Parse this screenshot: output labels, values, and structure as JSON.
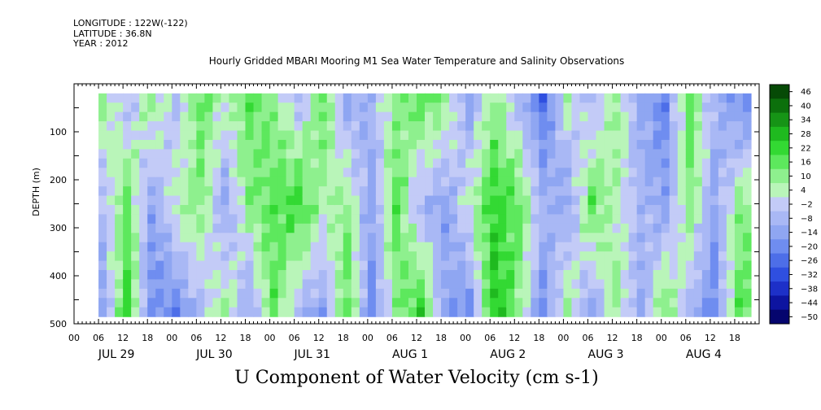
{
  "header": {
    "longitude": "LONGITUDE : 122W(-122)",
    "latitude": "LATITUDE : 36.8N",
    "year": "YEAR : 2012",
    "title": "Hourly Gridded MBARI Mooring M1 Sea Water Temperature and Salinity Observations"
  },
  "chart_data": {
    "type": "heatmap",
    "title": "Hourly Gridded MBARI Mooring M1 Sea Water Temperature and Salinity Observations",
    "xlabel": "U Component of Water Velocity (cm s-1)",
    "ylabel": "DEPTH (m)",
    "y_axis": {
      "range": [
        500,
        0
      ],
      "reversed": true,
      "tick_values": [
        100,
        200,
        300,
        400,
        500
      ],
      "data_range": [
        20,
        485
      ]
    },
    "x_axis": {
      "hour_ticks": [
        "00",
        "06",
        "12",
        "18",
        "00",
        "06",
        "12",
        "18",
        "00",
        "06",
        "12",
        "18",
        "00",
        "06",
        "12",
        "18",
        "00",
        "06",
        "12",
        "18",
        "00",
        "06",
        "12",
        "18",
        "00",
        "06",
        "12",
        "18"
      ],
      "day_labels": [
        "JUL 29",
        "JUL 30",
        "JUL 31",
        "AUG  1",
        "AUG  2",
        "AUG  3",
        "AUG  4"
      ],
      "start": "2012-07-29 00:00",
      "end": "2012-08-04 23:00"
    },
    "colorbar": {
      "levels": [
        -50,
        -44,
        -38,
        -32,
        -26,
        -20,
        -14,
        -8,
        -2,
        4,
        10,
        16,
        22,
        28,
        34,
        40,
        46
      ],
      "colors": [
        "#05056e",
        "#0d14a0",
        "#1d30c8",
        "#2f4fe0",
        "#4d6ee8",
        "#6f8df0",
        "#8fa6f2",
        "#a9b8f5",
        "#c3cbf7",
        "#b9f5b9",
        "#8ef08e",
        "#5de85d",
        "#33d933",
        "#1fba1f",
        "#169416",
        "#0c700c",
        "#064a06"
      ]
    },
    "field_columns": [
      {
        "time": "2012-07-29 06:00",
        "u_surface": 10,
        "u_mid": -8,
        "u_deep": -14
      },
      {
        "time": "2012-07-29 12:00",
        "u_surface": -8,
        "u_mid": 16,
        "u_deep": 22
      },
      {
        "time": "2012-07-29 18:00",
        "u_surface": 10,
        "u_mid": -14,
        "u_deep": -20
      },
      {
        "time": "2012-07-30 00:00",
        "u_surface": -8,
        "u_mid": 4,
        "u_deep": -20
      },
      {
        "time": "2012-07-30 06:00",
        "u_surface": 16,
        "u_mid": 10,
        "u_deep": -8
      },
      {
        "time": "2012-07-30 12:00",
        "u_surface": 4,
        "u_mid": -14,
        "u_deep": 10
      },
      {
        "time": "2012-07-30 18:00",
        "u_surface": 16,
        "u_mid": 10,
        "u_deep": -14
      },
      {
        "time": "2012-07-31 00:00",
        "u_surface": 10,
        "u_mid": 16,
        "u_deep": 16
      },
      {
        "time": "2012-07-31 06:00",
        "u_surface": -8,
        "u_mid": 22,
        "u_deep": -8
      },
      {
        "time": "2012-07-31 12:00",
        "u_surface": 16,
        "u_mid": 4,
        "u_deep": -14
      },
      {
        "time": "2012-07-31 18:00",
        "u_surface": -14,
        "u_mid": 10,
        "u_deep": 16
      },
      {
        "time": "2012-08-01 00:00",
        "u_surface": -8,
        "u_mid": -14,
        "u_deep": -20
      },
      {
        "time": "2012-08-01 06:00",
        "u_surface": 10,
        "u_mid": 16,
        "u_deep": 10
      },
      {
        "time": "2012-08-01 12:00",
        "u_surface": 16,
        "u_mid": -8,
        "u_deep": 22
      },
      {
        "time": "2012-08-01 18:00",
        "u_surface": 10,
        "u_mid": -14,
        "u_deep": -14
      },
      {
        "time": "2012-08-02 00:00",
        "u_surface": -14,
        "u_mid": 4,
        "u_deep": -20
      },
      {
        "time": "2012-08-02 06:00",
        "u_surface": 10,
        "u_mid": 22,
        "u_deep": 28
      },
      {
        "time": "2012-08-02 12:00",
        "u_surface": -8,
        "u_mid": 16,
        "u_deep": 10
      },
      {
        "time": "2012-08-02 18:00",
        "u_surface": -26,
        "u_mid": -8,
        "u_deep": -20
      },
      {
        "time": "2012-08-03 00:00",
        "u_surface": 4,
        "u_mid": -14,
        "u_deep": 10
      },
      {
        "time": "2012-08-03 06:00",
        "u_surface": -8,
        "u_mid": 16,
        "u_deep": -14
      },
      {
        "time": "2012-08-03 12:00",
        "u_surface": 10,
        "u_mid": 4,
        "u_deep": 10
      },
      {
        "time": "2012-08-03 18:00",
        "u_surface": -14,
        "u_mid": -8,
        "u_deep": -14
      },
      {
        "time": "2012-08-04 00:00",
        "u_surface": -20,
        "u_mid": -14,
        "u_deep": 16
      },
      {
        "time": "2012-08-04 06:00",
        "u_surface": 16,
        "u_mid": 10,
        "u_deep": -8
      },
      {
        "time": "2012-08-04 12:00",
        "u_surface": -8,
        "u_mid": -14,
        "u_deep": -20
      },
      {
        "time": "2012-08-04 18:00",
        "u_surface": -20,
        "u_mid": 10,
        "u_deep": 16
      }
    ]
  }
}
